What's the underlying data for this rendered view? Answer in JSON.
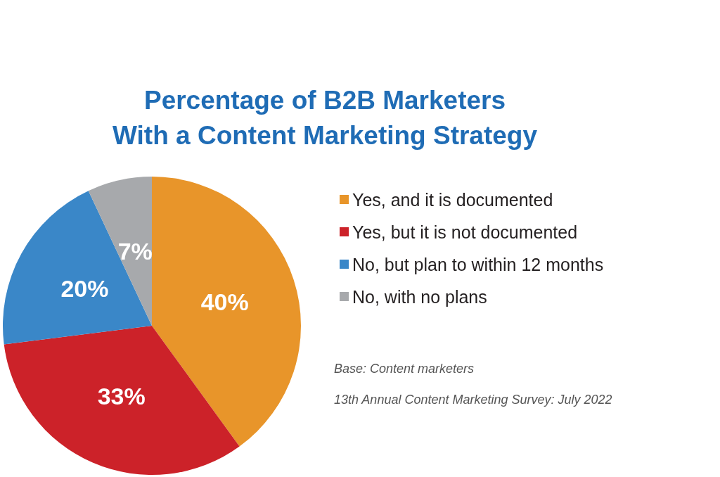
{
  "chart_data": {
    "type": "pie",
    "title": "Percentage of B2B Marketers\nWith a Content Marketing Strategy",
    "categories": [
      "Yes, and it is documented",
      "Yes, but it is not documented",
      "No, but plan to within 12 months",
      "No, with no plans"
    ],
    "values": [
      40,
      33,
      20,
      7
    ],
    "value_labels": [
      "40%",
      "33%",
      "20%",
      "7%"
    ],
    "colors": [
      "#e8952a",
      "#cc2229",
      "#3a87c8",
      "#a7a9ac"
    ],
    "legend": "right",
    "annotations": [
      "Base: Content marketers",
      "13th Annual Content Marketing Survey: July 2022"
    ]
  }
}
